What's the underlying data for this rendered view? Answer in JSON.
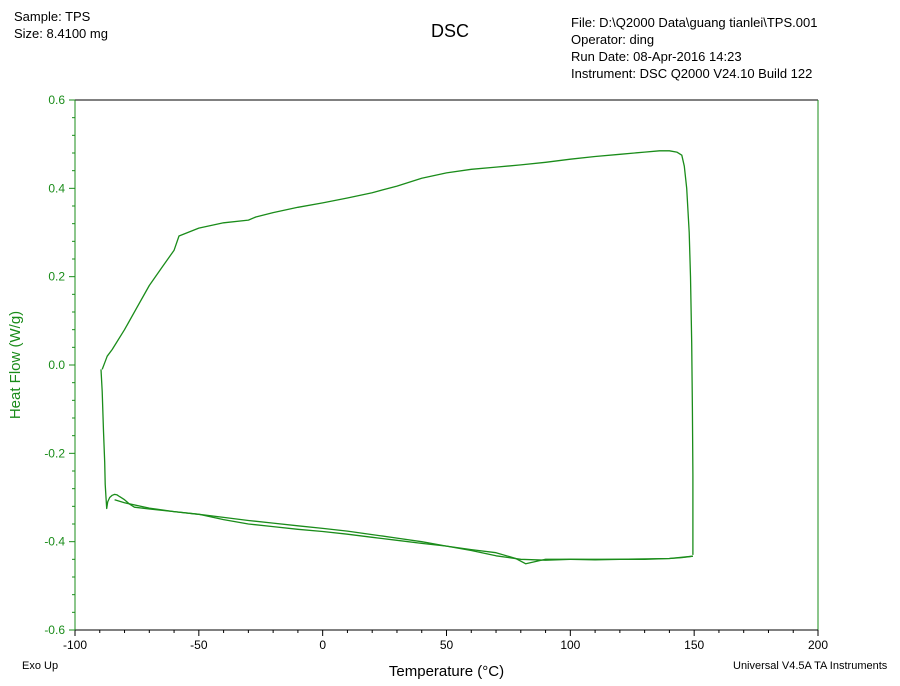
{
  "header_left": {
    "sample": "Sample: TPS",
    "size": "Size:  8.4100 mg"
  },
  "header_right": {
    "file": "File: D:\\Q2000 Data\\guang tianlei\\TPS.001",
    "operator": "Operator: ding",
    "run_date": "Run Date: 08-Apr-2016 14:23",
    "instrument": "Instrument: DSC Q2000 V24.10 Build 122"
  },
  "footer": {
    "exo_up": "Exo Up",
    "software": "Universal V4.5A TA Instruments"
  },
  "colors": {
    "series": "#1a8c1a",
    "ylabel": "#1a8c1a",
    "axis": "#000000"
  },
  "chart_data": {
    "type": "line",
    "title": "DSC",
    "xlabel": "Temperature (°C)",
    "ylabel": "Heat Flow (W/g)",
    "xlim": [
      -100,
      200
    ],
    "ylim": [
      -0.6,
      0.6
    ],
    "xticks": [
      -100,
      -50,
      0,
      50,
      100,
      150,
      200
    ],
    "xtick_labels": [
      "-100",
      "-50",
      "0",
      "50",
      "100",
      "150",
      "200"
    ],
    "yticks": [
      -0.6,
      -0.4,
      -0.2,
      0.0,
      0.2,
      0.4,
      0.6
    ],
    "ytick_labels": [
      "-0.6",
      "-0.4",
      "-0.2",
      "0.0",
      "0.2",
      "0.4",
      "0.6"
    ],
    "grid": false,
    "series": [
      {
        "x": [
          -89,
          -88,
          -87,
          -85,
          -80,
          -75,
          -70,
          -65,
          -60,
          -58,
          -50,
          -40,
          -30,
          -27,
          -20,
          -10,
          0,
          10,
          20,
          30,
          40,
          50,
          60,
          70,
          80,
          90,
          100,
          110,
          120,
          130,
          136,
          140,
          143,
          145,
          146,
          147,
          148,
          148.5,
          149,
          149.3,
          149.5,
          149.5,
          149.5
        ],
        "y": [
          -0.01,
          0.005,
          0.02,
          0.035,
          0.08,
          0.13,
          0.18,
          0.22,
          0.26,
          0.292,
          0.31,
          0.322,
          0.328,
          0.335,
          0.345,
          0.357,
          0.367,
          0.378,
          0.39,
          0.405,
          0.423,
          0.435,
          0.443,
          0.448,
          0.453,
          0.459,
          0.466,
          0.472,
          0.477,
          0.482,
          0.485,
          0.485,
          0.482,
          0.475,
          0.45,
          0.4,
          0.3,
          0.2,
          0.05,
          -0.1,
          -0.25,
          -0.38,
          -0.43
        ]
      },
      {
        "x": [
          -89.5,
          -89,
          -88.5,
          -88,
          -87.8,
          -87.5,
          -87.2,
          -86.8,
          -86,
          -85,
          -84,
          -83,
          -82,
          -80,
          -78,
          -76,
          -70,
          -60,
          -50,
          -40,
          -30,
          -20,
          -10,
          0,
          10,
          20,
          30,
          40,
          50,
          60,
          70,
          78,
          82,
          86,
          90,
          100,
          110,
          120,
          130,
          140,
          145,
          149.5
        ],
        "y": [
          -0.01,
          -0.06,
          -0.15,
          -0.22,
          -0.27,
          -0.3,
          -0.325,
          -0.31,
          -0.3,
          -0.295,
          -0.293,
          -0.294,
          -0.298,
          -0.305,
          -0.315,
          -0.322,
          -0.326,
          -0.332,
          -0.338,
          -0.35,
          -0.36,
          -0.366,
          -0.372,
          -0.377,
          -0.383,
          -0.39,
          -0.397,
          -0.404,
          -0.41,
          -0.418,
          -0.425,
          -0.438,
          -0.45,
          -0.445,
          -0.44,
          -0.44,
          -0.441,
          -0.44,
          -0.44,
          -0.438,
          -0.436,
          -0.433
        ]
      },
      {
        "x": [
          149.5,
          140,
          130,
          120,
          110,
          100,
          90,
          80,
          70,
          60,
          50,
          40,
          30,
          20,
          10,
          0,
          -10,
          -20,
          -30,
          -40,
          -50,
          -60,
          -70,
          -80,
          -84
        ],
        "y": [
          -0.433,
          -0.438,
          -0.439,
          -0.44,
          -0.44,
          -0.44,
          -0.442,
          -0.44,
          -0.432,
          -0.42,
          -0.41,
          -0.4,
          -0.392,
          -0.384,
          -0.376,
          -0.37,
          -0.364,
          -0.358,
          -0.352,
          -0.345,
          -0.338,
          -0.332,
          -0.324,
          -0.312,
          -0.305
        ]
      }
    ]
  }
}
